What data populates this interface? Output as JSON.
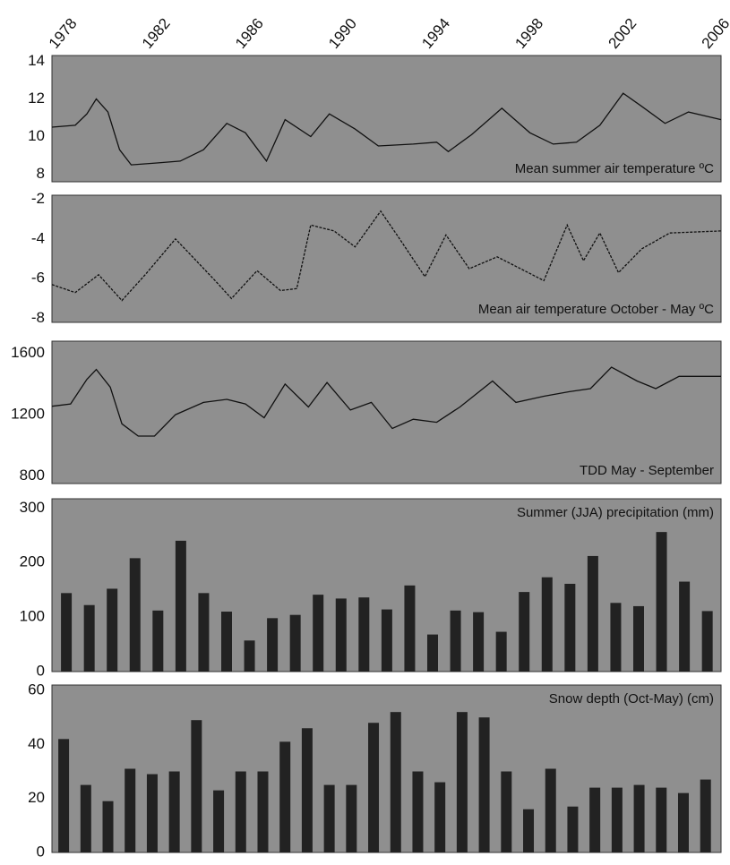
{
  "chart_data": [
    {
      "type": "line",
      "title": "Mean summer air temperature ºC",
      "color": "#111111",
      "background": "#8f8f8f",
      "xlim": [
        1977.5,
        2006.2
      ],
      "xticks": [
        1978,
        1982,
        1986,
        1990,
        1994,
        1998,
        2002,
        2006
      ],
      "ylim": [
        7.6,
        14.3
      ],
      "yticks": [
        8,
        10,
        12,
        14
      ],
      "x": [
        1977.5,
        1978.5,
        1979,
        1979.4,
        1979.9,
        1980.4,
        1980.9,
        1982,
        1983,
        1984,
        1985,
        1985.8,
        1986.7,
        1987.5,
        1988.6,
        1989.4,
        1990.5,
        1991.5,
        1993,
        1994,
        1994.5,
        1995.5,
        1996.8,
        1998,
        1999,
        2000,
        2001,
        2002,
        2002.8,
        2003.8,
        2004.8,
        2006.2
      ],
      "values": [
        10.5,
        10.6,
        11.2,
        12.0,
        11.3,
        9.3,
        8.5,
        8.6,
        8.7,
        9.3,
        10.7,
        10.2,
        8.7,
        10.9,
        10.0,
        11.2,
        10.4,
        9.5,
        9.6,
        9.7,
        9.2,
        10.1,
        11.5,
        10.2,
        9.6,
        9.7,
        10.6,
        12.3,
        11.6,
        10.7,
        11.3,
        10.9
      ]
    },
    {
      "type": "line",
      "title": "Mean air temperature October - May ºC",
      "color": "#111111",
      "background": "#8f8f8f",
      "line_style": "dashed",
      "xlim": [
        1977.5,
        2006.2
      ],
      "ylim": [
        -8.2,
        -1.8
      ],
      "yticks": [
        -8,
        -6,
        -4,
        -2
      ],
      "x": [
        1977.5,
        1978.5,
        1979.5,
        1980.5,
        1981.5,
        1982.8,
        1984.5,
        1985.2,
        1986.3,
        1987.3,
        1988,
        1988.6,
        1989.6,
        1990.5,
        1991.6,
        1992.3,
        1993.5,
        1994.4,
        1995.4,
        1996.6,
        1997.6,
        1998.6,
        1999.6,
        2000.3,
        2001,
        2001.8,
        2002.8,
        2004,
        2006.2
      ],
      "values": [
        -6.3,
        -6.7,
        -5.8,
        -7.1,
        -5.8,
        -4.0,
        -6.1,
        -7.0,
        -5.6,
        -6.6,
        -6.5,
        -3.3,
        -3.6,
        -4.4,
        -2.6,
        -3.8,
        -5.9,
        -3.8,
        -5.5,
        -4.9,
        -5.5,
        -6.1,
        -3.3,
        -5.1,
        -3.7,
        -5.7,
        -4.5,
        -3.7,
        -3.6
      ]
    },
    {
      "type": "line",
      "title": "TDD May - September",
      "color": "#111111",
      "background": "#8f8f8f",
      "xlim": [
        1977.5,
        2006.2
      ],
      "ylim": [
        750,
        1680
      ],
      "yticks": [
        800,
        1200,
        1600
      ],
      "x": [
        1977.5,
        1978.3,
        1979,
        1979.4,
        1980,
        1980.5,
        1981.2,
        1981.9,
        1982.8,
        1984,
        1985,
        1985.8,
        1986.6,
        1987.5,
        1988.5,
        1989.3,
        1990.3,
        1991.2,
        1992.1,
        1993,
        1994,
        1995,
        1996.4,
        1997.4,
        1998.6,
        1999.7,
        2000.6,
        2001.5,
        2002.6,
        2003.4,
        2004.4,
        2006.2
      ],
      "values": [
        1255,
        1270,
        1430,
        1495,
        1380,
        1140,
        1060,
        1060,
        1200,
        1280,
        1300,
        1270,
        1180,
        1400,
        1250,
        1410,
        1230,
        1280,
        1110,
        1170,
        1150,
        1250,
        1420,
        1280,
        1320,
        1350,
        1370,
        1510,
        1420,
        1370,
        1450,
        1450
      ]
    },
    {
      "type": "bar",
      "title": "Summer (JJA) precipitation (mm)",
      "color": "#222222",
      "background": "#8f8f8f",
      "xlim": [
        1977.37,
        2006.6
      ],
      "ylim": [
        0,
        317
      ],
      "yticks": [
        0,
        100,
        200,
        300
      ],
      "x": [
        1978,
        1979,
        1980,
        1981,
        1982,
        1983,
        1984,
        1985,
        1986,
        1987,
        1988,
        1989,
        1990,
        1991,
        1992,
        1993,
        1994,
        1995,
        1996,
        1997,
        1998,
        1999,
        2000,
        2001,
        2002,
        2003,
        2004,
        2005,
        2006
      ],
      "values": [
        144,
        122,
        152,
        208,
        112,
        240,
        144,
        110,
        57,
        98,
        104,
        141,
        134,
        136,
        114,
        158,
        68,
        112,
        109,
        73,
        146,
        173,
        161,
        212,
        126,
        120,
        256,
        165,
        111
      ]
    },
    {
      "type": "bar",
      "title": "Snow depth (Oct-May) (cm)",
      "color": "#222222",
      "background": "#8f8f8f",
      "xlim": [
        1977.47,
        2007.7
      ],
      "ylim": [
        0,
        62
      ],
      "yticks": [
        0,
        20,
        40,
        60
      ],
      "x": [
        1978,
        1979,
        1980,
        1981,
        1982,
        1983,
        1984,
        1985,
        1986,
        1987,
        1988,
        1989,
        1990,
        1991,
        1992,
        1993,
        1994,
        1995,
        1996,
        1997,
        1998,
        1999,
        2000,
        2001,
        2002,
        2003,
        2004,
        2005,
        2006,
        2007
      ],
      "values": [
        42,
        25,
        19,
        31,
        29,
        30,
        49,
        23,
        30,
        30,
        41,
        46,
        25,
        25,
        48,
        52,
        30,
        26,
        52,
        50,
        30,
        16,
        31,
        17,
        24,
        24,
        25,
        24,
        22,
        27
      ]
    }
  ]
}
